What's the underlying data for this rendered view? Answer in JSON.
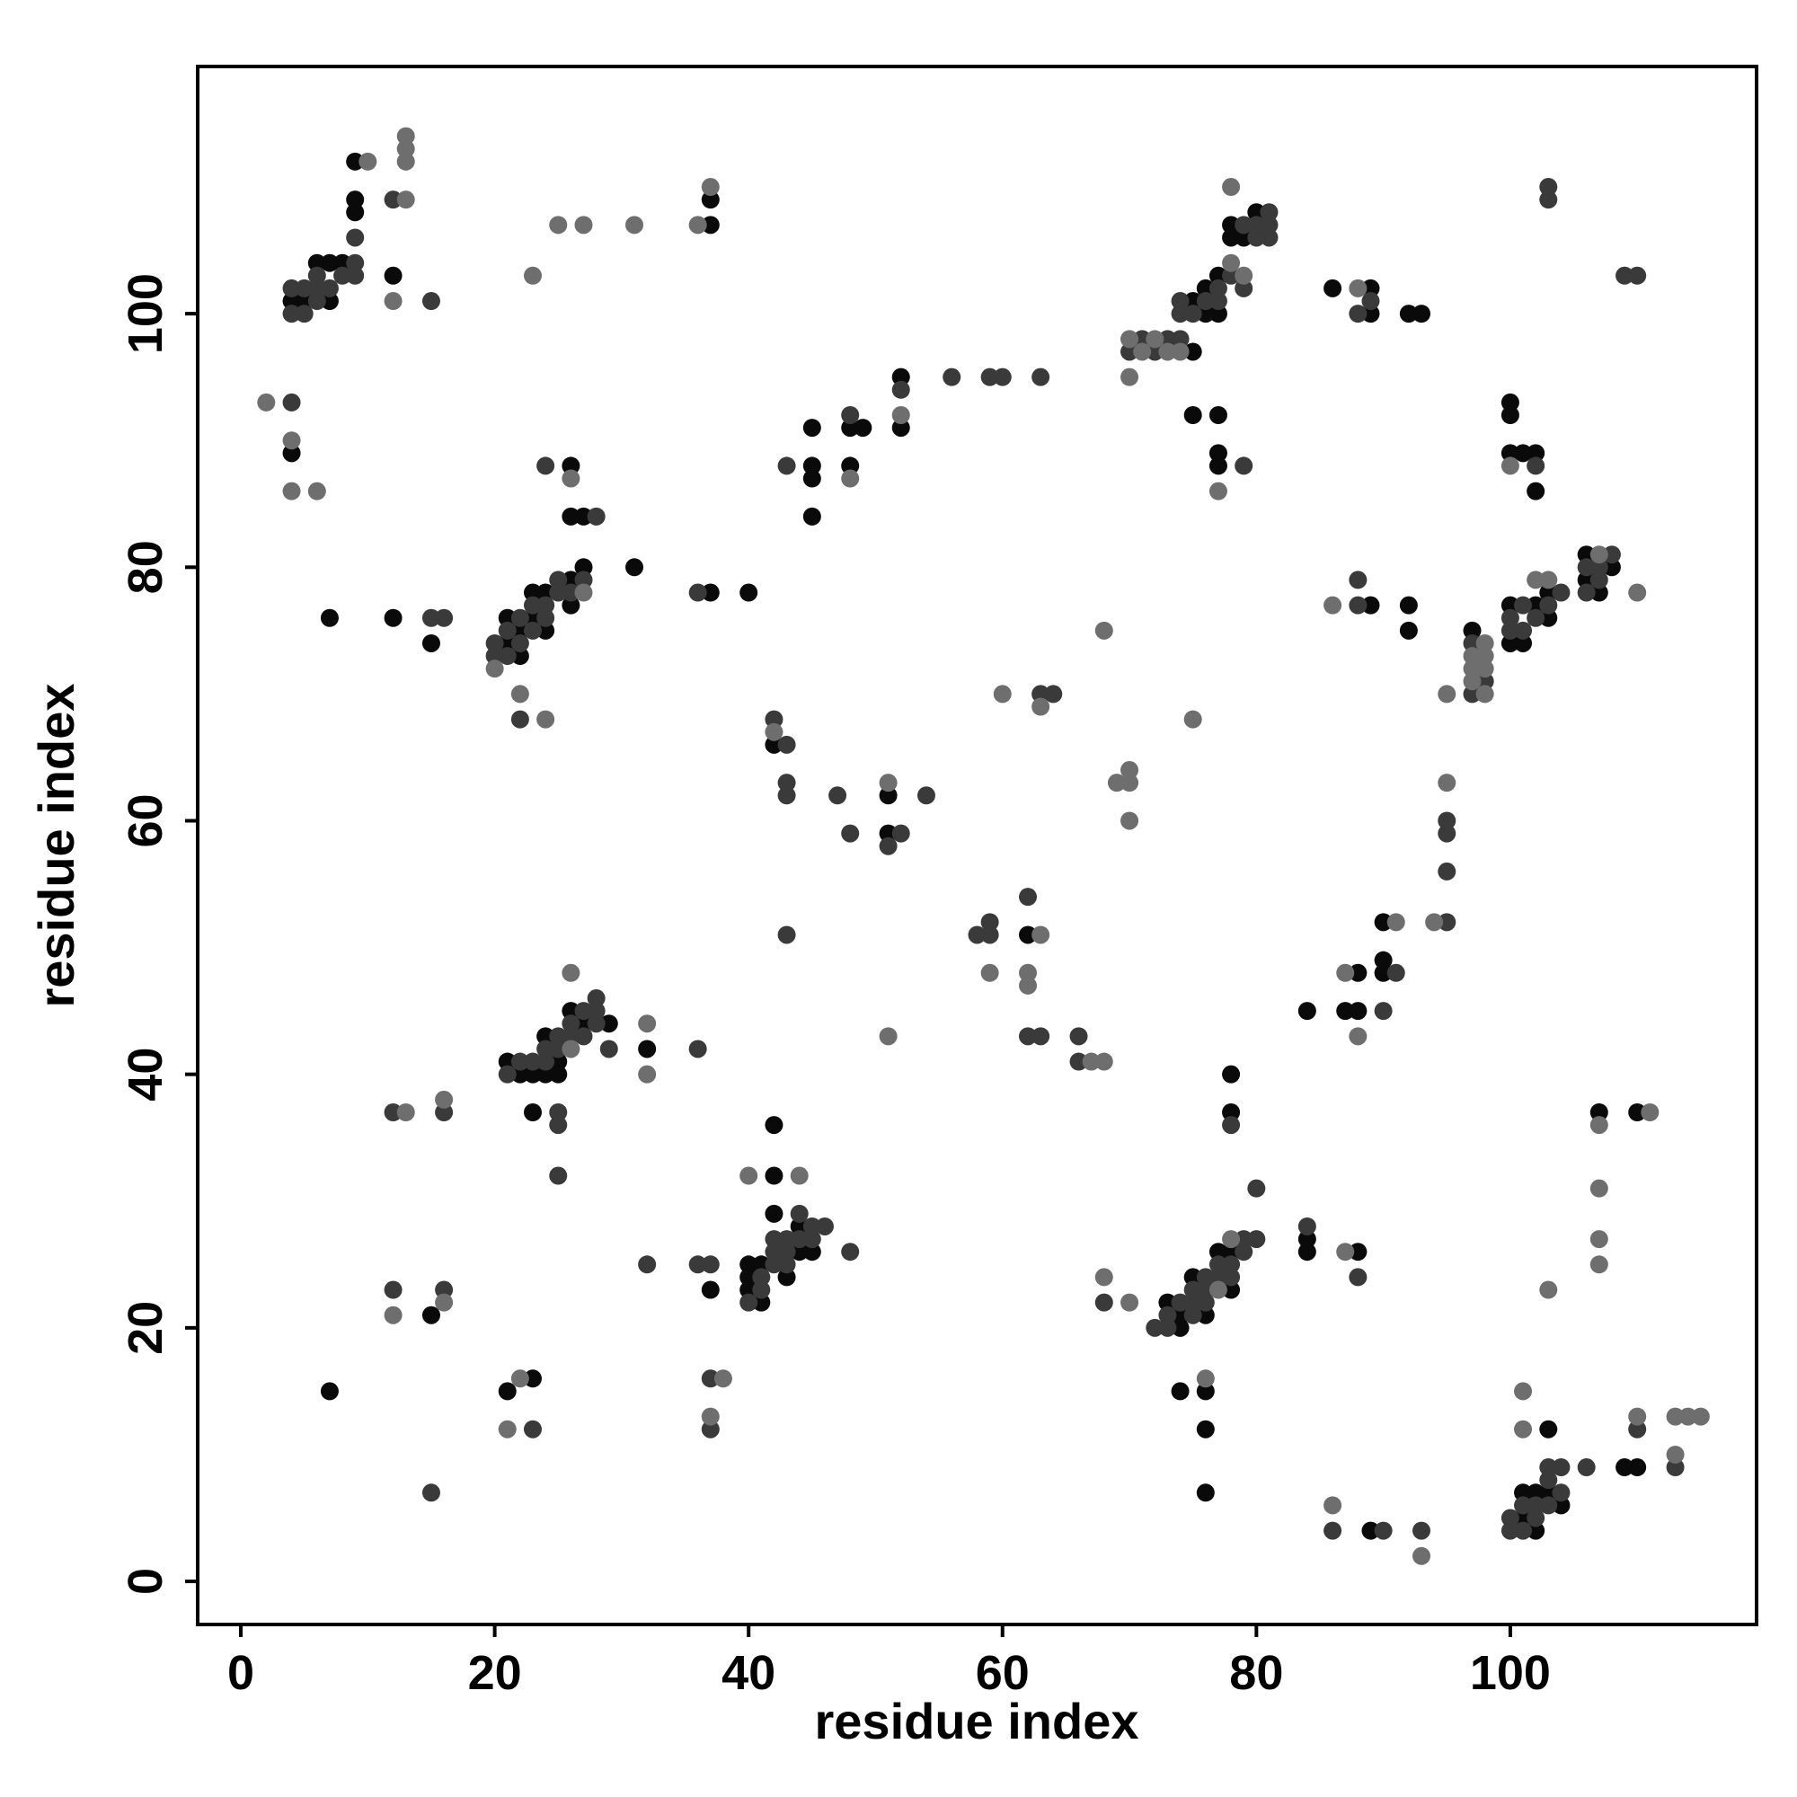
{
  "chart_data": {
    "type": "scatter",
    "xlabel": "residue index",
    "ylabel": "residue index",
    "xlim": [
      -3.4,
      119.4
    ],
    "ylim": [
      -3.4,
      119.5
    ],
    "xticks": [
      0,
      20,
      40,
      60,
      80,
      100
    ],
    "yticks": [
      0,
      20,
      40,
      60,
      80,
      100
    ],
    "series": [
      {
        "color": "#0a0a0a",
        "x": [
          4,
          5,
          6,
          7,
          7,
          8,
          9,
          9,
          9,
          12,
          7,
          12,
          15,
          4,
          21,
          21,
          22,
          22,
          23,
          23,
          24,
          24,
          26,
          26,
          26,
          26,
          27,
          27,
          31,
          37,
          40,
          45,
          45,
          45,
          45,
          48,
          48,
          49,
          52,
          52,
          51,
          51,
          42,
          75,
          76,
          76,
          77,
          77,
          78,
          78,
          79,
          80,
          75,
          75,
          77,
          77,
          77,
          86,
          89,
          89,
          92,
          93,
          100,
          100,
          100,
          101,
          102,
          102,
          89,
          92,
          92,
          97,
          100,
          100,
          101,
          102,
          103,
          103,
          106,
          106,
          107,
          108,
          90,
          90,
          90,
          84,
          87,
          88,
          88,
          21,
          22,
          23,
          24,
          24,
          25,
          25,
          26,
          27,
          29,
          32,
          23,
          40,
          40,
          40,
          41,
          41,
          42,
          42,
          42,
          43,
          44,
          44,
          45,
          37,
          15,
          7,
          21,
          23,
          73,
          74,
          74,
          75,
          76,
          77,
          78,
          78,
          78,
          78,
          84,
          84,
          88,
          74,
          76,
          76,
          76,
          89,
          101,
          101,
          102,
          102,
          103,
          103,
          104,
          107,
          109,
          110,
          110,
          37,
          37,
          62
        ],
        "values": [
          101,
          101,
          104,
          101,
          104,
          104,
          108,
          109,
          112,
          103,
          76,
          76,
          74,
          89,
          74,
          76,
          73,
          75,
          76,
          78,
          75,
          78,
          77,
          79,
          88,
          84,
          84,
          80,
          80,
          78,
          78,
          88,
          87,
          91,
          84,
          91,
          88,
          91,
          95,
          91,
          62,
          59,
          66,
          101,
          100,
          102,
          100,
          103,
          106,
          107,
          106,
          108,
          97,
          92,
          92,
          89,
          88,
          102,
          102,
          100,
          100,
          100,
          93,
          92,
          89,
          89,
          89,
          86,
          77,
          77,
          75,
          75,
          74,
          77,
          74,
          77,
          76,
          78,
          81,
          79,
          78,
          80,
          52,
          49,
          48,
          45,
          45,
          48,
          45,
          41,
          40,
          40,
          43,
          40,
          41,
          40,
          45,
          44,
          44,
          42,
          37,
          25,
          24,
          23,
          25,
          22,
          36,
          32,
          29,
          24,
          28,
          26,
          26,
          23,
          21,
          15,
          15,
          16,
          22,
          21,
          20,
          24,
          21,
          26,
          23,
          26,
          40,
          37,
          27,
          26,
          26,
          15,
          15,
          12,
          7,
          4,
          7,
          5,
          7,
          4,
          12,
          7,
          6,
          37,
          9,
          9,
          37,
          109,
          107,
          51
        ]
      },
      {
        "color": "#3a3a3a",
        "x": [
          4,
          4,
          5,
          5,
          6,
          6,
          6,
          7,
          8,
          9,
          9,
          9,
          12,
          15,
          4,
          16,
          15,
          20,
          20,
          21,
          21,
          22,
          22,
          23,
          23,
          24,
          24,
          25,
          25,
          26,
          27,
          24,
          28,
          36,
          22,
          43,
          48,
          52,
          52,
          56,
          59,
          60,
          63,
          42,
          43,
          43,
          43,
          47,
          48,
          51,
          54,
          43,
          58,
          59,
          59,
          62,
          62,
          63,
          66,
          66,
          63,
          64,
          70,
          71,
          72,
          73,
          74,
          74,
          74,
          75,
          76,
          77,
          77,
          78,
          79,
          79,
          80,
          80,
          81,
          81,
          81,
          79,
          88,
          89,
          102,
          103,
          103,
          109,
          110,
          88,
          88,
          97,
          97,
          98,
          100,
          100,
          101,
          101,
          102,
          103,
          104,
          106,
          106,
          107,
          107,
          108,
          95,
          95,
          95,
          95,
          91,
          90,
          21,
          22,
          23,
          24,
          24,
          25,
          25,
          26,
          26,
          27,
          27,
          28,
          28,
          28,
          29,
          36,
          25,
          25,
          25,
          12,
          16,
          41,
          41,
          40,
          42,
          42,
          42,
          43,
          43,
          43,
          44,
          44,
          45,
          45,
          46,
          48,
          32,
          36,
          37,
          12,
          16,
          15,
          23,
          37,
          37,
          68,
          72,
          73,
          73,
          74,
          75,
          75,
          75,
          76,
          76,
          76,
          77,
          77,
          78,
          78,
          79,
          79,
          80,
          80,
          78,
          84,
          88,
          86,
          90,
          93,
          100,
          100,
          101,
          101,
          102,
          102,
          103,
          103,
          103,
          104,
          104,
          106,
          110,
          113
        ],
        "values": [
          100,
          102,
          100,
          102,
          101,
          102,
          103,
          102,
          103,
          103,
          104,
          106,
          109,
          101,
          93,
          76,
          76,
          73,
          74,
          73,
          75,
          74,
          76,
          75,
          77,
          76,
          77,
          78,
          79,
          78,
          79,
          88,
          84,
          78,
          68,
          88,
          92,
          94,
          59,
          95,
          95,
          95,
          95,
          68,
          66,
          63,
          62,
          62,
          59,
          58,
          62,
          51,
          51,
          52,
          51,
          54,
          43,
          43,
          43,
          41,
          70,
          70,
          97,
          98,
          97,
          98,
          98,
          101,
          100,
          100,
          101,
          101,
          102,
          103,
          102,
          107,
          106,
          107,
          106,
          107,
          108,
          88,
          100,
          101,
          88,
          110,
          109,
          103,
          103,
          79,
          77,
          70,
          74,
          71,
          75,
          76,
          75,
          77,
          76,
          77,
          78,
          78,
          80,
          79,
          80,
          81,
          60,
          59,
          56,
          52,
          48,
          45,
          40,
          41,
          41,
          41,
          42,
          43,
          42,
          44,
          43,
          45,
          43,
          46,
          45,
          44,
          42,
          42,
          37,
          36,
          32,
          37,
          37,
          24,
          23,
          22,
          27,
          26,
          25,
          27,
          26,
          25,
          29,
          27,
          28,
          27,
          28,
          26,
          25,
          25,
          25,
          23,
          23,
          7,
          12,
          16,
          12,
          22,
          20,
          21,
          20,
          22,
          23,
          22,
          21,
          24,
          23,
          22,
          25,
          24,
          25,
          24,
          27,
          26,
          27,
          31,
          36,
          28,
          24,
          4,
          4,
          4,
          5,
          4,
          6,
          4,
          6,
          5,
          9,
          8,
          6,
          9,
          7,
          9,
          12,
          9
        ]
      },
      {
        "color": "#6e6e6e",
        "x": [
          10,
          12,
          13,
          13,
          13,
          13,
          2,
          4,
          4,
          6,
          23,
          25,
          27,
          31,
          36,
          37,
          20,
          22,
          24,
          26,
          27,
          48,
          52,
          42,
          51,
          59,
          62,
          62,
          63,
          67,
          68,
          51,
          60,
          63,
          68,
          69,
          70,
          70,
          70,
          75,
          70,
          70,
          71,
          72,
          73,
          74,
          78,
          78,
          79,
          77,
          88,
          86,
          95,
          97,
          97,
          97,
          98,
          98,
          98,
          98,
          100,
          102,
          103,
          107,
          110,
          95,
          94,
          91,
          87,
          88,
          26,
          32,
          32,
          13,
          16,
          40,
          44,
          12,
          16,
          22,
          21,
          37,
          38,
          68,
          70,
          77,
          78,
          87,
          76,
          86,
          93,
          101,
          101,
          103,
          107,
          107,
          107,
          107,
          110,
          111,
          113,
          113,
          114,
          115,
          26
        ],
        "values": [
          112,
          101,
          109,
          112,
          113,
          114,
          93,
          90,
          86,
          86,
          103,
          107,
          107,
          107,
          107,
          110,
          72,
          70,
          68,
          87,
          78,
          87,
          92,
          67,
          63,
          48,
          48,
          47,
          51,
          41,
          41,
          43,
          70,
          69,
          75,
          63,
          64,
          63,
          60,
          68,
          98,
          95,
          97,
          98,
          97,
          97,
          104,
          110,
          103,
          86,
          102,
          77,
          70,
          71,
          72,
          73,
          70,
          72,
          73,
          74,
          88,
          79,
          79,
          81,
          78,
          63,
          52,
          52,
          48,
          43,
          48,
          44,
          40,
          37,
          38,
          32,
          32,
          21,
          22,
          16,
          12,
          13,
          16,
          24,
          22,
          23,
          27,
          26,
          16,
          6,
          2,
          15,
          12,
          23,
          36,
          31,
          27,
          25,
          13,
          37,
          13,
          10,
          13,
          13,
          42
        ]
      }
    ]
  }
}
